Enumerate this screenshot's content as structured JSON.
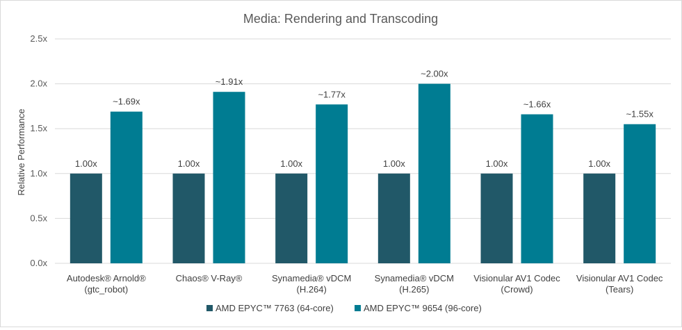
{
  "chart_data": {
    "type": "bar",
    "title": "Media:  Rendering and Transcoding",
    "ylabel": "Relative Performance",
    "xlabel": "",
    "ylim": [
      0,
      2.5
    ],
    "yticks": [
      "0.0x",
      "0.5x",
      "1.0x",
      "1.5x",
      "2.0x",
      "2.5x"
    ],
    "ytick_values": [
      0,
      0.5,
      1.0,
      1.5,
      2.0,
      2.5
    ],
    "grid": true,
    "legend_position": "bottom",
    "categories": [
      [
        "Autodesk® Arnold®",
        "(gtc_robot)"
      ],
      [
        "Chaos® V-Ray®"
      ],
      [
        "Synamedia® vDCM",
        "(H.264)"
      ],
      [
        "Synamedia® vDCM",
        "(H.265)"
      ],
      [
        "Visionular AV1 Codec",
        "(Crowd)"
      ],
      [
        "Visionular AV1 Codec",
        "(Tears)"
      ]
    ],
    "series": [
      {
        "name": "AMD EPYC™ 7763 (64-core)",
        "color": "#215868",
        "values": [
          1.0,
          1.0,
          1.0,
          1.0,
          1.0,
          1.0
        ],
        "labels": [
          "1.00x",
          "1.00x",
          "1.00x",
          "1.00x",
          "1.00x",
          "1.00x"
        ]
      },
      {
        "name": "AMD EPYC™ 9654 (96-core)",
        "color": "#007C92",
        "values": [
          1.69,
          1.91,
          1.77,
          2.0,
          1.66,
          1.55
        ],
        "labels": [
          "~1.69x",
          "~1.91x",
          "~1.77x",
          "~2.00x",
          "~1.66x",
          "~1.55x"
        ]
      }
    ]
  }
}
